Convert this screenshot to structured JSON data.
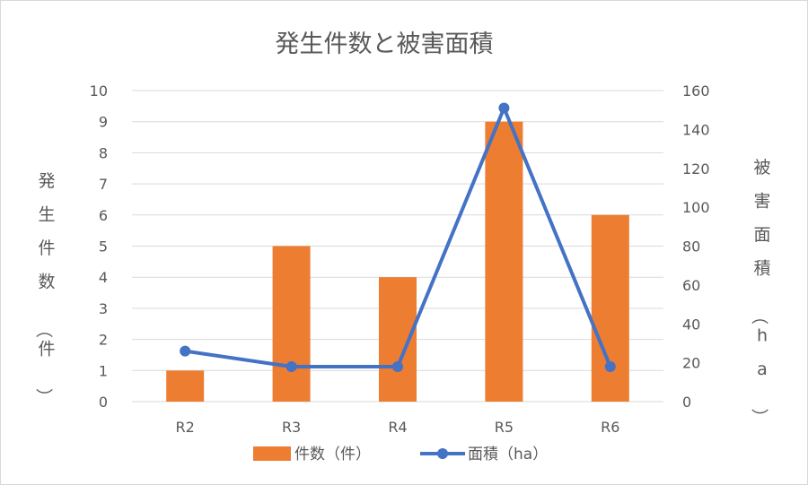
{
  "chart_data": {
    "type": "bar",
    "title": "発生件数と被害面積",
    "categories": [
      "R2",
      "R3",
      "R4",
      "R5",
      "R6"
    ],
    "series": [
      {
        "name": "件数（件）",
        "type": "bar",
        "axis": "left",
        "color": "#ED7D31",
        "values": [
          1,
          5,
          4,
          9,
          6
        ]
      },
      {
        "name": "面積（ha）",
        "type": "line",
        "axis": "right",
        "color": "#4472C4",
        "values": [
          26,
          18,
          18,
          151,
          18
        ]
      }
    ],
    "ylabel": "発生件数（件）",
    "y2label": "被害面積（ha）",
    "ylim": [
      0,
      10
    ],
    "y2lim": [
      0,
      160
    ],
    "yticks": [
      "0",
      "1",
      "2",
      "3",
      "4",
      "5",
      "6",
      "7",
      "8",
      "9",
      "10"
    ],
    "y2ticks": [
      "0",
      "20",
      "40",
      "60",
      "80",
      "100",
      "120",
      "140",
      "160"
    ],
    "grid": true,
    "legend_position": "bottom"
  }
}
